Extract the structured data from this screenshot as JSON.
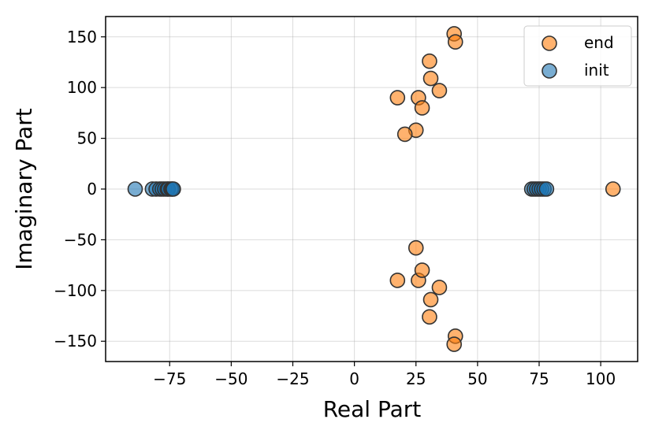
{
  "chart_data": {
    "type": "scatter",
    "title": "",
    "xlabel": "Real Part",
    "ylabel": "Imaginary Part",
    "xlim": [
      -101,
      115
    ],
    "ylim": [
      -170,
      170
    ],
    "xticks": [
      -75,
      -50,
      -25,
      0,
      25,
      50,
      75,
      100
    ],
    "yticks": [
      -150,
      -100,
      -50,
      0,
      50,
      100,
      150
    ],
    "xtick_labels": [
      "−75",
      "−50",
      "−25",
      "0",
      "25",
      "50",
      "75",
      "100"
    ],
    "ytick_labels": [
      "−150",
      "−100",
      "−50",
      "0",
      "50",
      "100",
      "150"
    ],
    "grid": true,
    "legend_position": "top-right",
    "series": [
      {
        "name": "end",
        "color": "#ff7f0e",
        "points": [
          [
            40.5,
            153
          ],
          [
            41,
            145
          ],
          [
            30.5,
            126
          ],
          [
            31,
            109
          ],
          [
            34.5,
            97
          ],
          [
            17.5,
            90
          ],
          [
            26,
            90
          ],
          [
            27.5,
            80
          ],
          [
            25,
            58
          ],
          [
            20.5,
            54
          ],
          [
            105,
            0
          ],
          [
            25,
            -58
          ],
          [
            17.5,
            -90
          ],
          [
            26,
            -90
          ],
          [
            27.5,
            -80
          ],
          [
            34.5,
            -97
          ],
          [
            31,
            -109
          ],
          [
            30.5,
            -126
          ],
          [
            41,
            -145
          ],
          [
            40.5,
            -153
          ]
        ]
      },
      {
        "name": "init",
        "color": "#1f77b4",
        "points": [
          [
            -89,
            0
          ],
          [
            -82,
            0
          ],
          [
            -80.5,
            0
          ],
          [
            -79,
            0
          ],
          [
            -78,
            0
          ],
          [
            -77,
            0
          ],
          [
            -76,
            0
          ],
          [
            -75.5,
            0
          ],
          [
            -74.5,
            0
          ],
          [
            -74,
            0
          ],
          [
            -73.5,
            0
          ],
          [
            72,
            0
          ],
          [
            73,
            0
          ],
          [
            74,
            0
          ],
          [
            75,
            0
          ],
          [
            76,
            0
          ],
          [
            77,
            0
          ],
          [
            78,
            0
          ]
        ]
      }
    ]
  }
}
